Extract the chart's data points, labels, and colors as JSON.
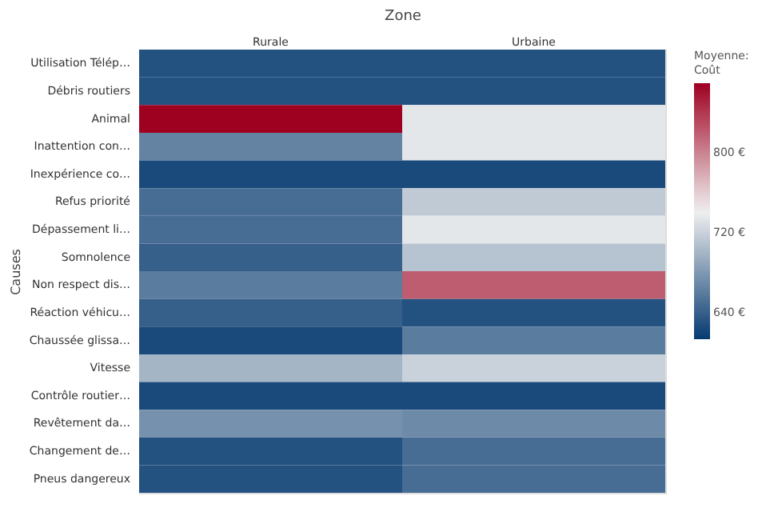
{
  "chart_data": {
    "type": "heatmap",
    "title": "Zone",
    "ylabel": "Causes",
    "legend_title": "Moyenne: Coût",
    "categories": [
      "Rurale",
      "Urbaine"
    ],
    "y_categories": [
      "Utilisation Télép…",
      "Débris routiers",
      "Animal",
      "Inattention con…",
      "Inexpérience co…",
      "Refus priorité",
      "Dépassement li…",
      "Somnolence",
      "Non respect dis…",
      "Réaction véhicu…",
      "Chaussée glissa…",
      "Vitesse",
      "Contrôle routier…",
      "Revêtement da…",
      "Changement de…",
      "Pneus dangereux"
    ],
    "cells": [
      [
        630,
        630
      ],
      [
        630,
        630
      ],
      [
        869,
        735
      ],
      [
        665,
        735
      ],
      [
        625,
        625
      ],
      [
        650,
        715
      ],
      [
        650,
        735
      ],
      [
        640,
        710
      ],
      [
        660,
        820
      ],
      [
        640,
        630
      ],
      [
        625,
        660
      ],
      [
        700,
        720
      ],
      [
        625,
        625
      ],
      [
        675,
        670
      ],
      [
        630,
        650
      ],
      [
        630,
        650
      ]
    ],
    "clim": [
      614,
      869
    ],
    "cticks": [
      {
        "value": 640,
        "label": "640 €"
      },
      {
        "value": 720,
        "label": "720 €"
      },
      {
        "value": 800,
        "label": "800 €"
      }
    ],
    "colors": [
      "#063a70",
      "#f0f0f0",
      "#9e0020"
    ]
  }
}
